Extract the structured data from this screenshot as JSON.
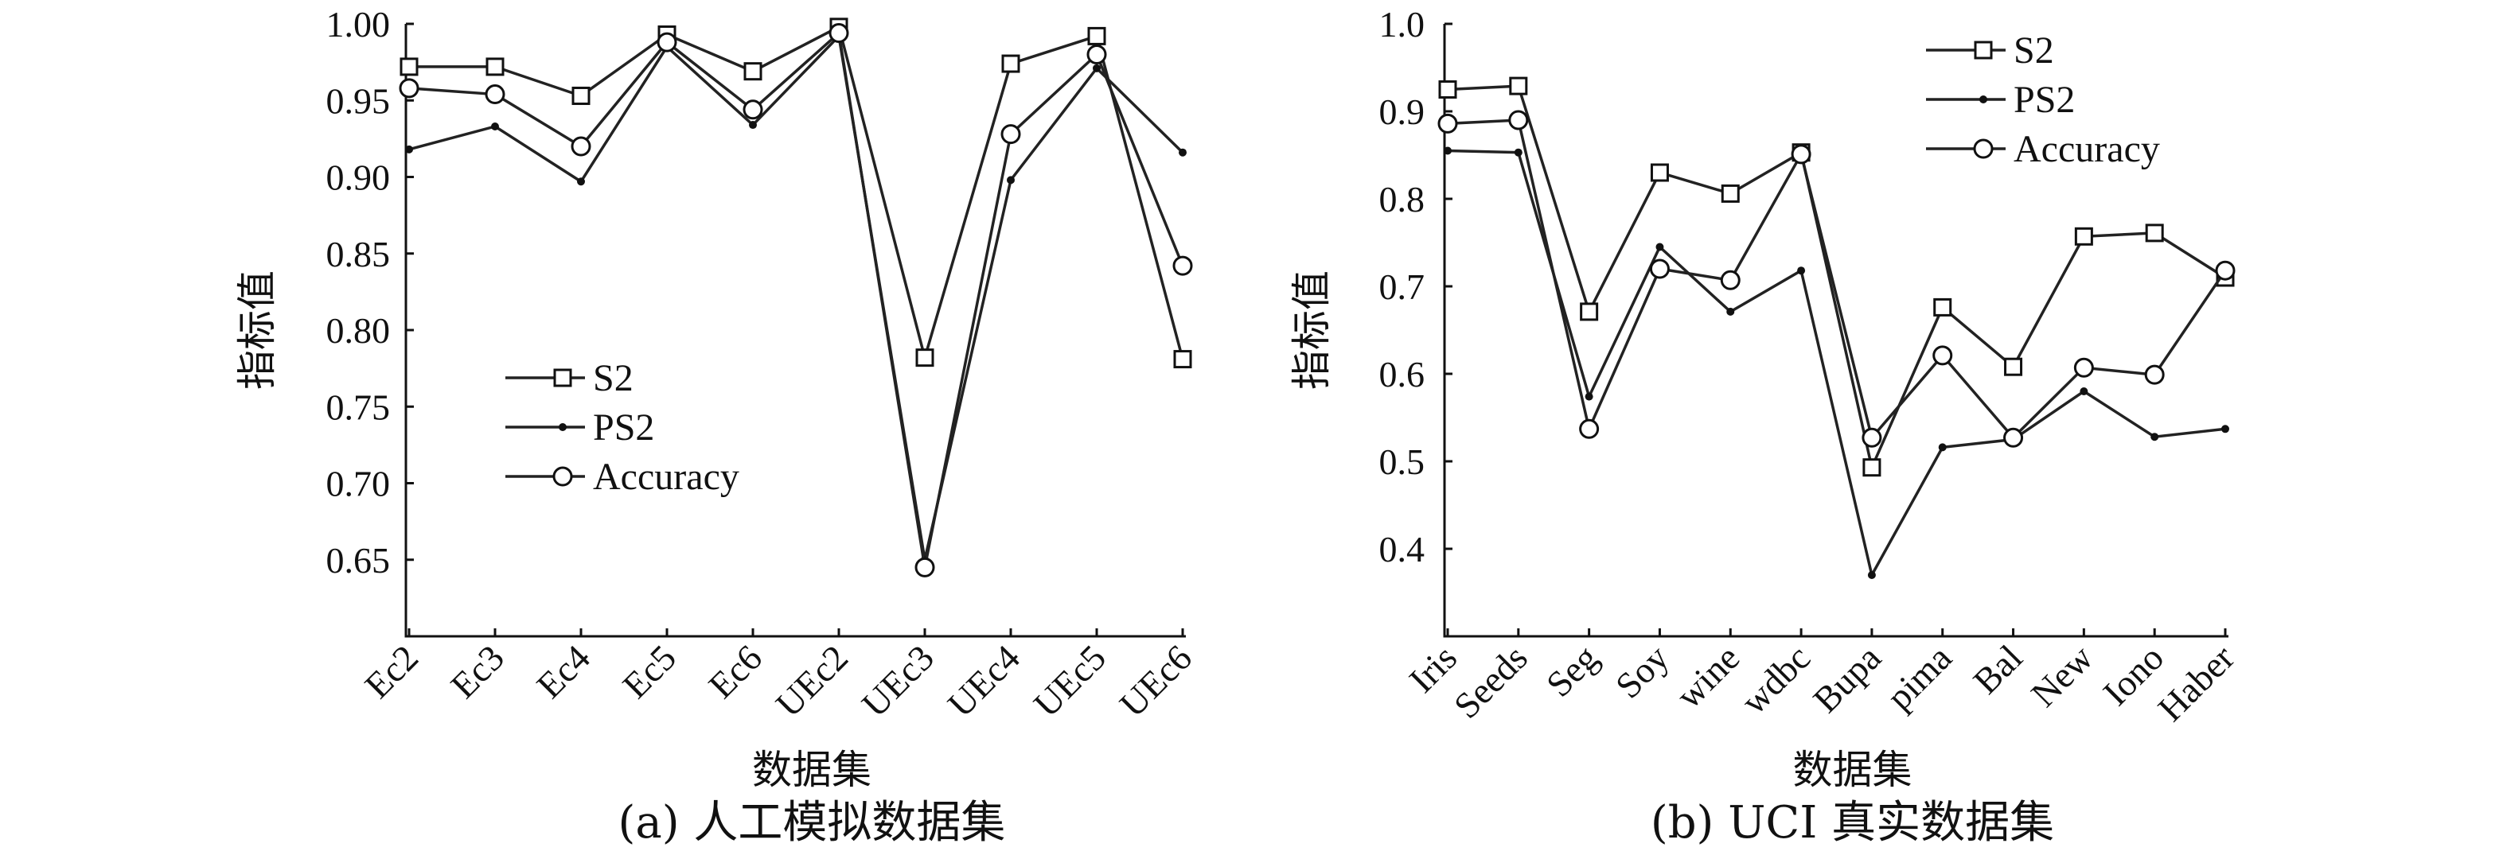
{
  "chart_data": [
    {
      "type": "line",
      "ylabel": "指标值",
      "xlabel": "数据集",
      "caption": "(a) 人工模拟数据集",
      "ylim": [
        0.6,
        1.0
      ],
      "yticks": [
        "1.00",
        "0.95",
        "0.90",
        "0.85",
        "0.80",
        "0.75",
        "0.70",
        "0.65"
      ],
      "categories": [
        "Ec2",
        "Ec3",
        "Ec4",
        "Ec5",
        "Ec6",
        "UEc2",
        "UEc3",
        "UEc4",
        "UEc5",
        "UEc6"
      ],
      "legend": [
        "S2",
        "PS2",
        "Accuracy"
      ],
      "legend_position": "center-left",
      "series": [
        {
          "name": "S2",
          "marker": "square",
          "values": [
            0.972,
            0.972,
            0.953,
            0.993,
            0.969,
            0.998,
            0.782,
            0.974,
            0.992,
            0.781
          ]
        },
        {
          "name": "PS2",
          "marker": "dot",
          "values": [
            0.918,
            0.933,
            0.897,
            0.985,
            0.934,
            0.992,
            0.65,
            0.898,
            0.971,
            0.916
          ]
        },
        {
          "name": "Accuracy",
          "marker": "circle",
          "values": [
            0.958,
            0.954,
            0.92,
            0.988,
            0.944,
            0.994,
            0.645,
            0.928,
            0.98,
            0.842
          ]
        }
      ]
    },
    {
      "type": "line",
      "ylabel": "指标值",
      "xlabel": "数据集",
      "caption": "(b) UCI 真实数据集",
      "ylim": [
        0.3,
        1.0
      ],
      "yticks": [
        "1.0",
        "0.9",
        "0.8",
        "0.7",
        "0.6",
        "0.5",
        "0.4"
      ],
      "categories": [
        "Iris",
        "Seeds",
        "Seg",
        "Soy",
        "wine",
        "wdbc",
        "Bupa",
        "pima",
        "Bal",
        "New",
        "Iono",
        "Haber"
      ],
      "legend": [
        "S2",
        "PS2",
        "Accuracy"
      ],
      "legend_position": "top-right",
      "series": [
        {
          "name": "S2",
          "marker": "square",
          "values": [
            0.925,
            0.929,
            0.671,
            0.83,
            0.806,
            0.853,
            0.493,
            0.676,
            0.608,
            0.757,
            0.761,
            0.71
          ]
        },
        {
          "name": "PS2",
          "marker": "dot",
          "values": [
            0.855,
            0.853,
            0.574,
            0.745,
            0.671,
            0.718,
            0.37,
            0.516,
            0.525,
            0.58,
            0.528,
            0.537
          ]
        },
        {
          "name": "Accuracy",
          "marker": "circle",
          "values": [
            0.886,
            0.89,
            0.537,
            0.72,
            0.707,
            0.851,
            0.527,
            0.621,
            0.527,
            0.607,
            0.599,
            0.718
          ]
        }
      ]
    }
  ]
}
